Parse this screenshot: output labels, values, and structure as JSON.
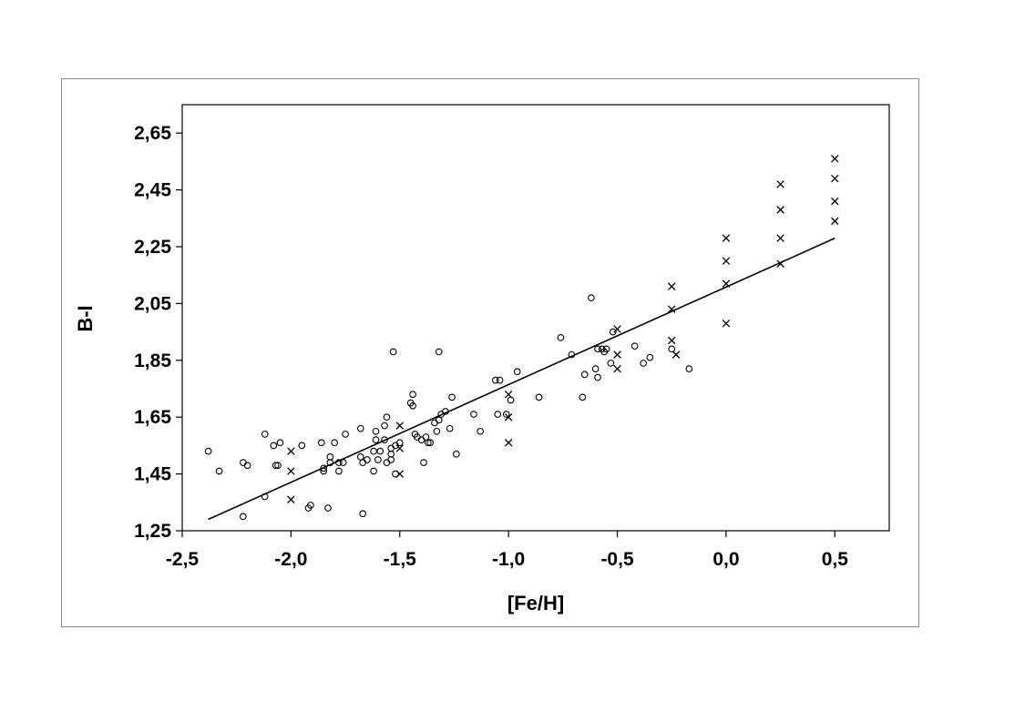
{
  "chart_data": {
    "type": "scatter",
    "xlabel": "[Fe/H]",
    "ylabel": "B-I",
    "xlim": [
      -2.5,
      0.75
    ],
    "ylim": [
      1.25,
      2.75
    ],
    "x_ticks": [
      "-2,5",
      "-2,0",
      "-1,5",
      "-1,0",
      "-0,5",
      "0,0",
      "0,5"
    ],
    "x_tick_values": [
      -2.5,
      -2.0,
      -1.5,
      -1.0,
      -0.5,
      0.0,
      0.5
    ],
    "y_ticks": [
      "2,65",
      "2,45",
      "2,25",
      "2,05",
      "1,85",
      "1,65",
      "1,45",
      "1,25"
    ],
    "y_tick_values": [
      2.65,
      2.45,
      2.25,
      2.05,
      1.85,
      1.65,
      1.45,
      1.25
    ],
    "grid": false,
    "legend": "none",
    "series": [
      {
        "marker": "circle",
        "points": [
          [
            -2.38,
            1.53
          ],
          [
            -2.33,
            1.46
          ],
          [
            -2.22,
            1.49
          ],
          [
            -2.2,
            1.48
          ],
          [
            -2.22,
            1.3
          ],
          [
            -2.12,
            1.59
          ],
          [
            -2.12,
            1.37
          ],
          [
            -2.08,
            1.55
          ],
          [
            -2.07,
            1.48
          ],
          [
            -2.06,
            1.48
          ],
          [
            -2.05,
            1.56
          ],
          [
            -1.95,
            1.55
          ],
          [
            -1.92,
            1.33
          ],
          [
            -1.91,
            1.34
          ],
          [
            -1.86,
            1.56
          ],
          [
            -1.85,
            1.46
          ],
          [
            -1.85,
            1.47
          ],
          [
            -1.83,
            1.33
          ],
          [
            -1.82,
            1.51
          ],
          [
            -1.82,
            1.49
          ],
          [
            -1.8,
            1.56
          ],
          [
            -1.78,
            1.49
          ],
          [
            -1.78,
            1.46
          ],
          [
            -1.76,
            1.49
          ],
          [
            -1.75,
            1.59
          ],
          [
            -1.68,
            1.61
          ],
          [
            -1.68,
            1.51
          ],
          [
            -1.67,
            1.49
          ],
          [
            -1.67,
            1.31
          ],
          [
            -1.65,
            1.5
          ],
          [
            -1.62,
            1.46
          ],
          [
            -1.62,
            1.53
          ],
          [
            -1.61,
            1.57
          ],
          [
            -1.61,
            1.6
          ],
          [
            -1.6,
            1.5
          ],
          [
            -1.59,
            1.53
          ],
          [
            -1.57,
            1.62
          ],
          [
            -1.57,
            1.57
          ],
          [
            -1.56,
            1.65
          ],
          [
            -1.56,
            1.49
          ],
          [
            -1.54,
            1.5
          ],
          [
            -1.54,
            1.52
          ],
          [
            -1.54,
            1.54
          ],
          [
            -1.53,
            1.88
          ],
          [
            -1.52,
            1.55
          ],
          [
            -1.52,
            1.45
          ],
          [
            -1.5,
            1.56
          ],
          [
            -1.45,
            1.7
          ],
          [
            -1.44,
            1.73
          ],
          [
            -1.44,
            1.69
          ],
          [
            -1.43,
            1.59
          ],
          [
            -1.42,
            1.58
          ],
          [
            -1.4,
            1.57
          ],
          [
            -1.39,
            1.49
          ],
          [
            -1.38,
            1.58
          ],
          [
            -1.37,
            1.56
          ],
          [
            -1.36,
            1.56
          ],
          [
            -1.34,
            1.63
          ],
          [
            -1.33,
            1.6
          ],
          [
            -1.32,
            1.88
          ],
          [
            -1.32,
            1.64
          ],
          [
            -1.31,
            1.66
          ],
          [
            -1.29,
            1.67
          ],
          [
            -1.27,
            1.61
          ],
          [
            -1.26,
            1.72
          ],
          [
            -1.24,
            1.52
          ],
          [
            -1.16,
            1.66
          ],
          [
            -1.13,
            1.6
          ],
          [
            -1.06,
            1.78
          ],
          [
            -1.04,
            1.78
          ],
          [
            -1.05,
            1.66
          ],
          [
            -1.01,
            1.66
          ],
          [
            -0.99,
            1.71
          ],
          [
            -0.96,
            1.81
          ],
          [
            -0.86,
            1.72
          ],
          [
            -0.76,
            1.93
          ],
          [
            -0.71,
            1.87
          ],
          [
            -0.66,
            1.72
          ],
          [
            -0.65,
            1.8
          ],
          [
            -0.62,
            2.07
          ],
          [
            -0.6,
            1.82
          ],
          [
            -0.59,
            1.79
          ],
          [
            -0.59,
            1.89
          ],
          [
            -0.57,
            1.89
          ],
          [
            -0.56,
            1.88
          ],
          [
            -0.55,
            1.89
          ],
          [
            -0.53,
            1.84
          ],
          [
            -0.52,
            1.95
          ],
          [
            -0.42,
            1.9
          ],
          [
            -0.38,
            1.84
          ],
          [
            -0.35,
            1.86
          ],
          [
            -0.25,
            1.89
          ],
          [
            -0.17,
            1.82
          ]
        ]
      },
      {
        "marker": "cross",
        "points": [
          [
            -2.0,
            1.53
          ],
          [
            -2.0,
            1.46
          ],
          [
            -2.0,
            1.36
          ],
          [
            -1.5,
            1.62
          ],
          [
            -1.5,
            1.54
          ],
          [
            -1.5,
            1.45
          ],
          [
            -1.0,
            1.73
          ],
          [
            -1.0,
            1.65
          ],
          [
            -1.0,
            1.56
          ],
          [
            -0.5,
            1.96
          ],
          [
            -0.5,
            1.87
          ],
          [
            -0.5,
            1.82
          ],
          [
            -0.25,
            2.11
          ],
          [
            -0.25,
            2.03
          ],
          [
            -0.25,
            1.92
          ],
          [
            -0.23,
            1.87
          ],
          [
            0.0,
            2.28
          ],
          [
            0.0,
            2.2
          ],
          [
            0.0,
            2.12
          ],
          [
            0.0,
            1.98
          ],
          [
            0.25,
            2.47
          ],
          [
            0.25,
            2.38
          ],
          [
            0.25,
            2.28
          ],
          [
            0.25,
            2.19
          ],
          [
            0.5,
            2.56
          ],
          [
            0.5,
            2.49
          ],
          [
            0.5,
            2.41
          ],
          [
            0.5,
            2.34
          ]
        ]
      }
    ],
    "fit_line": {
      "x": [
        -2.38,
        0.5
      ],
      "y": [
        1.29,
        2.28
      ]
    }
  }
}
